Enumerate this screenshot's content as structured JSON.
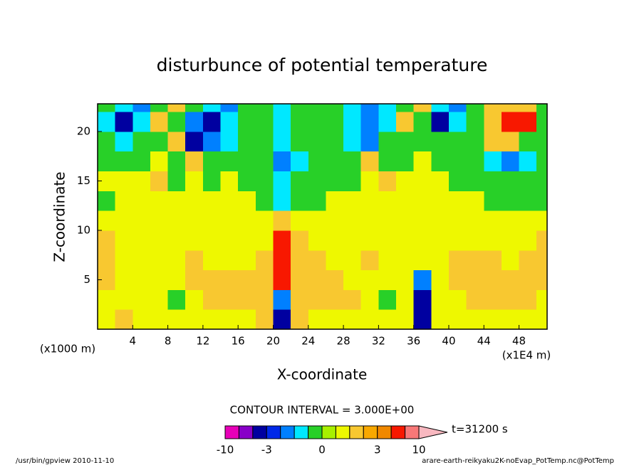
{
  "chart_data": {
    "type": "contour",
    "title": "disturbunce of potential temperature",
    "xlabel": "X-coordinate",
    "ylabel": "Z-coordinate",
    "x_unit": "(x1E4 m)",
    "y_unit": "(x1000 m)",
    "xlim": [
      0,
      51.2
    ],
    "ylim": [
      0,
      22.8
    ],
    "xticks": [
      4,
      8,
      12,
      16,
      20,
      24,
      28,
      32,
      36,
      40,
      44,
      48
    ],
    "yticks": [
      5,
      10,
      15,
      20
    ],
    "x": [
      1,
      3,
      5,
      7,
      9,
      11,
      13,
      15,
      17,
      19,
      21,
      23,
      25,
      27,
      29,
      31,
      33,
      35,
      37,
      39,
      41,
      43,
      45,
      47,
      49,
      51
    ],
    "y": [
      1,
      3,
      5,
      7,
      9,
      11,
      13,
      15,
      17,
      19,
      21,
      23
    ],
    "z": [
      [
        0.7,
        1.5,
        0.7,
        0.7,
        0.7,
        0.7,
        0.7,
        0.7,
        0.7,
        1.5,
        -3.5,
        1.5,
        0.7,
        0.7,
        0.7,
        0.7,
        0.7,
        0.7,
        -3.5,
        0.7,
        0.7,
        0.7,
        0.7,
        0.7,
        0.7,
        0.7
      ],
      [
        0.7,
        0.7,
        0.7,
        0.7,
        -0.2,
        0.7,
        1.5,
        1.5,
        1.5,
        1.5,
        -1.5,
        1.5,
        1.5,
        1.5,
        1.5,
        0.7,
        -0.2,
        0.7,
        -3.5,
        0.7,
        0.7,
        1.5,
        1.5,
        1.5,
        1.5,
        0.7
      ],
      [
        1.5,
        0.7,
        0.7,
        0.7,
        0.7,
        1.5,
        1.5,
        1.5,
        1.5,
        1.5,
        5,
        1.5,
        1.5,
        1.5,
        0.7,
        0.7,
        0.7,
        0.7,
        -1.5,
        0.7,
        1.5,
        1.5,
        1.5,
        1.5,
        1.5,
        1.5
      ],
      [
        1.5,
        0.7,
        0.7,
        0.7,
        0.7,
        1.5,
        0.7,
        0.7,
        0.7,
        1.5,
        5,
        1.5,
        1.5,
        0.7,
        0.7,
        1.5,
        0.7,
        0.7,
        0.7,
        0.7,
        1.5,
        1.5,
        1.5,
        0.7,
        1.5,
        1.5
      ],
      [
        1.5,
        0.7,
        0.7,
        0.7,
        0.7,
        0.7,
        0.7,
        0.7,
        0.7,
        0.7,
        5,
        1.5,
        0.7,
        0.7,
        0.7,
        0.7,
        0.7,
        0.7,
        0.7,
        0.7,
        0.7,
        0.7,
        0.7,
        0.7,
        0.7,
        1.5
      ],
      [
        0.7,
        0.7,
        0.7,
        0.7,
        0.7,
        0.7,
        0.7,
        0.7,
        0.7,
        0.7,
        1.5,
        0.7,
        0.7,
        0.7,
        0.7,
        0.7,
        0.7,
        0.7,
        0.7,
        0.7,
        0.7,
        0.7,
        0.7,
        0.7,
        0.7,
        0.7
      ],
      [
        -0.2,
        0.7,
        0.7,
        0.7,
        0.7,
        0.7,
        0.7,
        0.7,
        0.7,
        -0.2,
        -0.7,
        -0.2,
        -0.2,
        0.7,
        0.7,
        0.7,
        0.7,
        0.7,
        0.7,
        0.7,
        0.7,
        0.7,
        -0.2,
        -0.2,
        -0.2,
        -0.2
      ],
      [
        0.7,
        0.7,
        0.7,
        1.5,
        -0.2,
        0.7,
        -0.2,
        0.7,
        -0.2,
        -0.2,
        -0.7,
        -0.2,
        -0.2,
        -0.2,
        -0.2,
        0.7,
        1.5,
        0.7,
        0.7,
        0.7,
        -0.2,
        -0.2,
        -0.2,
        -0.2,
        -0.2,
        -0.2
      ],
      [
        -0.2,
        -0.2,
        -0.2,
        0.7,
        -0.2,
        1.5,
        -0.2,
        -0.2,
        -0.2,
        -0.2,
        -1.5,
        -0.7,
        -0.2,
        -0.2,
        -0.2,
        1.5,
        -0.2,
        -0.2,
        0.7,
        -0.2,
        -0.2,
        -0.2,
        -0.7,
        -1.5,
        -0.7,
        -0.2
      ],
      [
        -0.2,
        -0.7,
        -0.2,
        -0.2,
        1.5,
        -3.5,
        -1.5,
        -0.7,
        -0.2,
        -0.2,
        -0.7,
        -0.2,
        -0.2,
        -0.2,
        -0.7,
        -1.5,
        -0.2,
        -0.2,
        -0.2,
        -0.2,
        -0.2,
        -0.2,
        1.5,
        1.5,
        -0.2,
        -0.2
      ],
      [
        -0.7,
        -3.5,
        -0.7,
        1.5,
        -0.2,
        -1.5,
        -3.5,
        -0.7,
        -0.2,
        -0.2,
        -0.7,
        -0.2,
        -0.2,
        -0.2,
        -0.7,
        -1.5,
        -0.7,
        1.5,
        -0.2,
        -3.5,
        -0.7,
        -0.2,
        1.5,
        5,
        5,
        -0.2
      ],
      [
        -0.2,
        -0.7,
        -1.5,
        -0.2,
        1.5,
        -0.2,
        -0.7,
        -1.5,
        -0.2,
        -0.2,
        -0.7,
        -0.2,
        -0.2,
        -0.2,
        -0.7,
        -1.5,
        -0.7,
        -0.2,
        1.5,
        -0.7,
        -1.5,
        -0.2,
        1.5,
        1.5,
        1.5,
        -0.2
      ]
    ],
    "levels": [
      -10,
      -6,
      -4,
      -3,
      -2,
      -1,
      -0.5,
      0,
      0.5,
      1,
      2,
      3,
      4,
      6,
      10
    ],
    "colors": [
      "#e800b8",
      "#8800c8",
      "#0000a0",
      "#0028e8",
      "#0080ff",
      "#00e8ff",
      "#28d028",
      "#a8f000",
      "#eef800",
      "#f8c830",
      "#f8a800",
      "#f08800",
      "#f81800",
      "#f87878"
    ],
    "extend_color": "#f8b8c0",
    "colorbar_ticks": [
      -10,
      -3,
      0,
      3,
      10
    ],
    "contour_interval_label": "CONTOUR INTERVAL = 3.000E+00",
    "time_label": "t=31200 s",
    "footer_left": "/usr/bin/gpview   2010-11-10",
    "footer_right": "arare-earth-reikyaku2K-noEvap_PotTemp.nc@PotTemp"
  }
}
